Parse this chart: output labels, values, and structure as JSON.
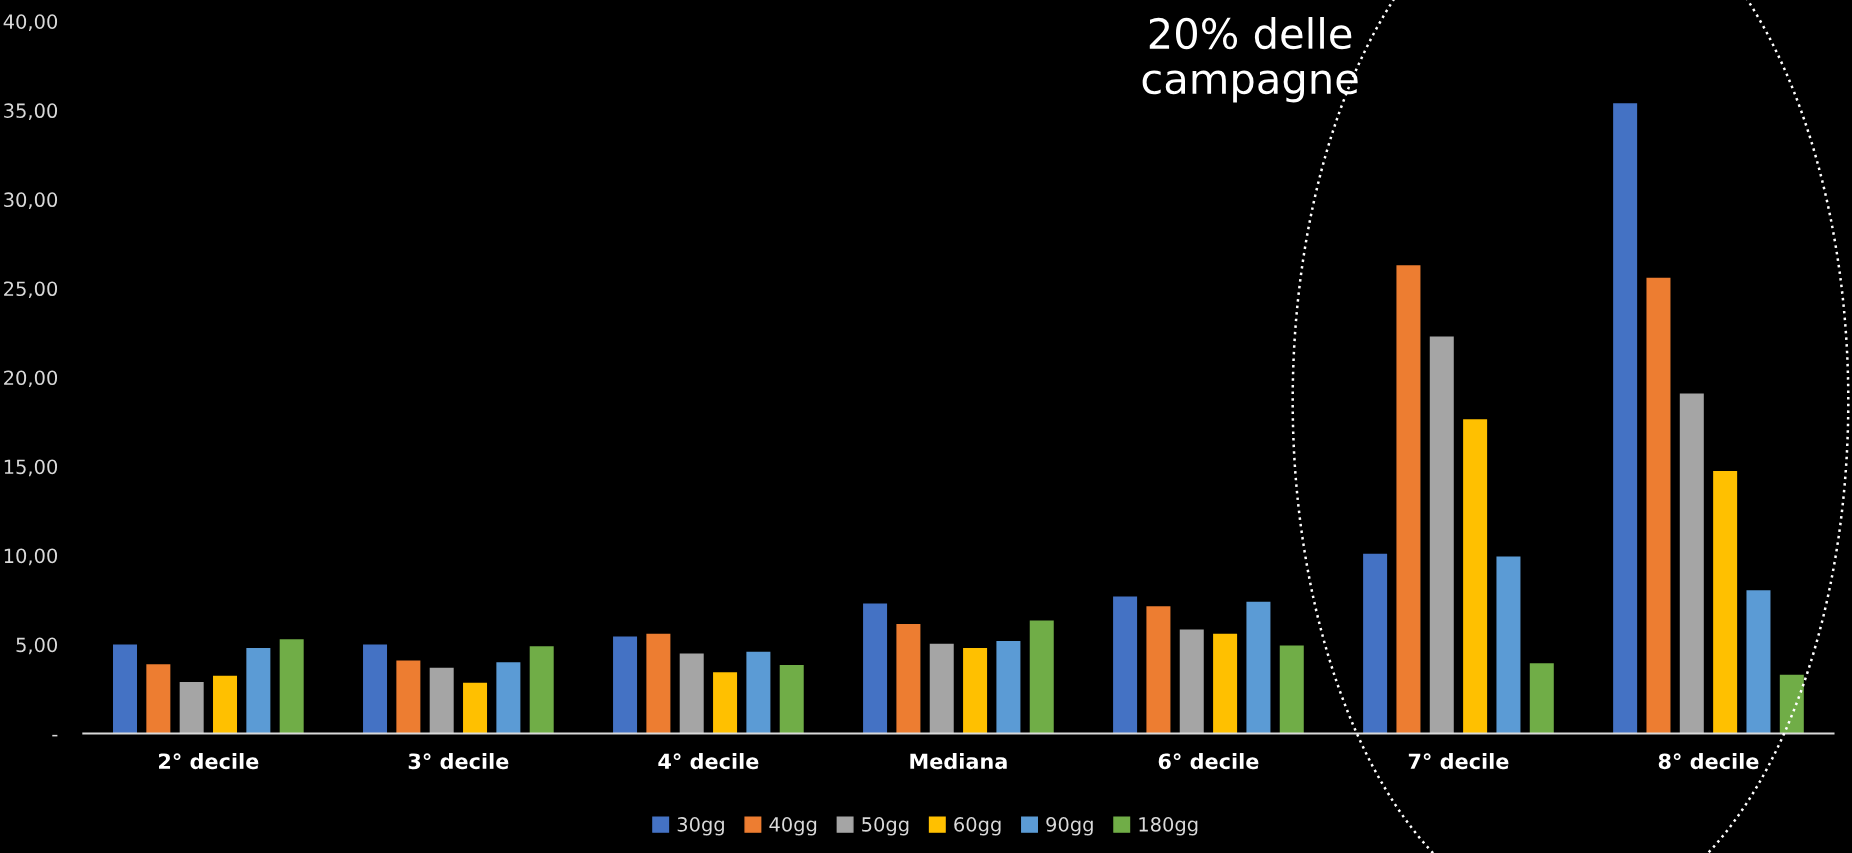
{
  "chart_data": {
    "type": "bar",
    "categories": [
      "2° decile",
      "3° decile",
      "4° decile",
      "Mediana",
      "6° decile",
      "7° decile",
      "8° decile"
    ],
    "series": [
      {
        "name": "30gg",
        "color": "#4472c4",
        "values": [
          5.0,
          5.0,
          5.45,
          7.3,
          7.7,
          10.1,
          35.4
        ]
      },
      {
        "name": "40gg",
        "color": "#ed7d31",
        "values": [
          3.9,
          4.1,
          5.6,
          6.15,
          7.15,
          26.3,
          25.6
        ]
      },
      {
        "name": "50gg",
        "color": "#a5a5a5",
        "values": [
          2.9,
          3.7,
          4.5,
          5.05,
          5.85,
          22.3,
          19.1
        ]
      },
      {
        "name": "60gg",
        "color": "#ffc000",
        "values": [
          3.25,
          2.85,
          3.45,
          4.8,
          5.6,
          17.65,
          14.75
        ]
      },
      {
        "name": "90gg",
        "color": "#5b9bd5",
        "values": [
          4.8,
          4.0,
          4.6,
          5.2,
          7.4,
          9.95,
          8.05
        ]
      },
      {
        "name": "180gg",
        "color": "#70ad47",
        "values": [
          5.3,
          4.9,
          3.85,
          6.35,
          4.95,
          3.95,
          3.3
        ]
      }
    ],
    "ylim": [
      0,
      40
    ],
    "yticks": [
      {
        "value": 0,
        "label": "-"
      },
      {
        "value": 5,
        "label": "5,00"
      },
      {
        "value": 10,
        "label": "10,00"
      },
      {
        "value": 15,
        "label": "15,00"
      },
      {
        "value": 20,
        "label": "20,00"
      },
      {
        "value": 25,
        "label": "25,00"
      },
      {
        "value": 30,
        "label": "30,00"
      },
      {
        "value": 35,
        "label": "35,00"
      },
      {
        "value": 40,
        "label": "40,00"
      }
    ],
    "annotations": [
      "20% delle\ncampagne"
    ],
    "grid": false,
    "legend": "bottom"
  }
}
